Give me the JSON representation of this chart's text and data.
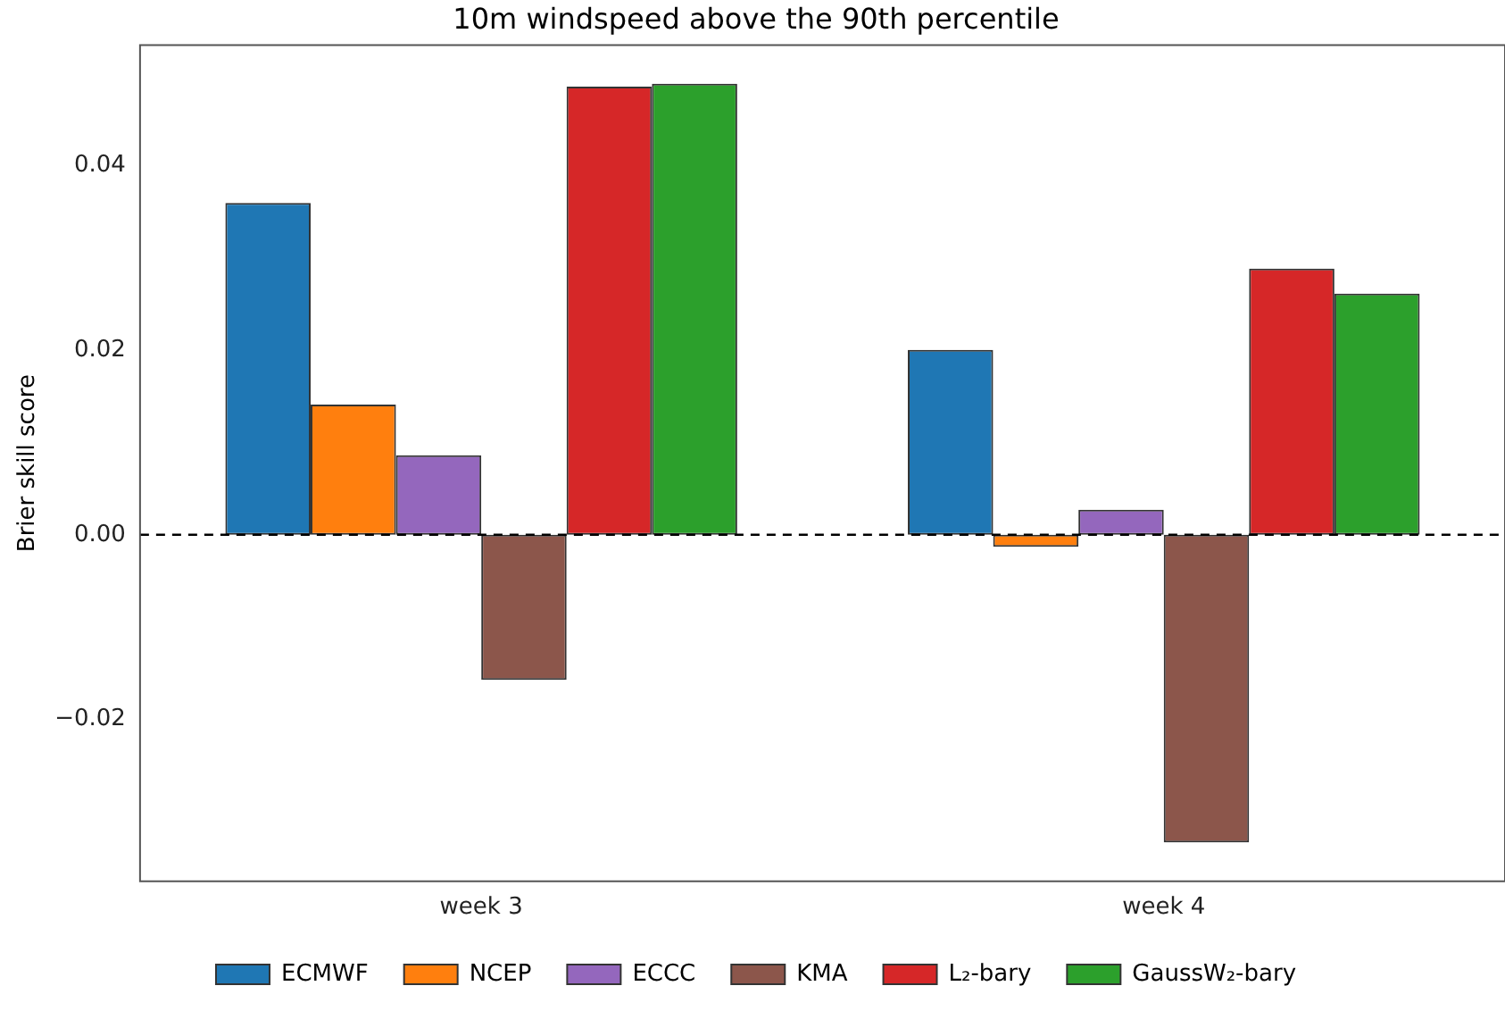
{
  "chart_data": {
    "type": "bar",
    "title": "10m windspeed above the 90th percentile",
    "ylabel": "Brier skill score",
    "categories": [
      "week 3",
      "week 4"
    ],
    "series": [
      {
        "name": "ECMWF",
        "color": "#1f77b4",
        "values": [
          0.0359,
          0.02
        ]
      },
      {
        "name": "NCEP",
        "color": "#ff7f0e",
        "values": [
          0.0141,
          -0.0013
        ]
      },
      {
        "name": "ECCC",
        "color": "#9467bd",
        "values": [
          0.0086,
          0.0027
        ]
      },
      {
        "name": "KMA",
        "color": "#8c564b",
        "values": [
          -0.0157,
          -0.0333
        ]
      },
      {
        "name": "L₂-bary",
        "color": "#d62728",
        "values": [
          0.0485,
          0.0288
        ]
      },
      {
        "name": "GaussW₂-bary",
        "color": "#2ca02c",
        "values": [
          0.0488,
          0.0261
        ]
      }
    ],
    "ylim": [
      -0.0375,
      0.053
    ],
    "yticks": [
      {
        "value": -0.02,
        "label": "−0.02"
      },
      {
        "value": 0,
        "label": "0.00"
      },
      {
        "value": 0.02,
        "label": "0.02"
      },
      {
        "value": 0.04,
        "label": "0.04"
      }
    ],
    "ref_lines": [
      {
        "axis": "y",
        "value": 0,
        "color": "#000000",
        "line_style": "dashed"
      }
    ],
    "grid": false,
    "legend": "bottom"
  }
}
